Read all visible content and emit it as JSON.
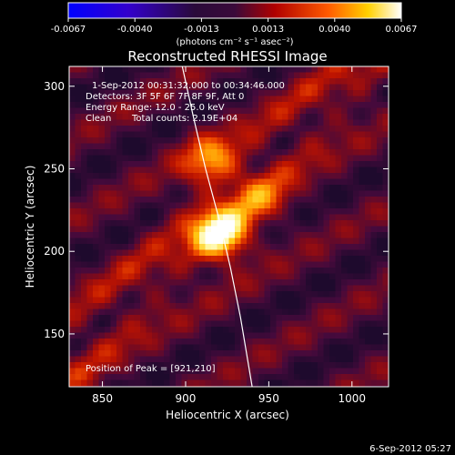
{
  "chart_data": {
    "type": "heatmap",
    "title": "Reconstructed RHESSI Image",
    "xlabel": "Heliocentric X (arcsec)",
    "ylabel": "Heliocentric Y (arcsec)",
    "xlim": [
      830,
      1022
    ],
    "ylim": [
      118,
      312
    ],
    "xticks": [
      "850",
      "900",
      "950",
      "1000"
    ],
    "yticks": [
      "150",
      "200",
      "250",
      "300"
    ],
    "colorbar": {
      "ticks": [
        "-0.0067",
        "-0.0040",
        "-0.0013",
        "0.0013",
        "0.0040",
        "0.0067"
      ],
      "unit_label": "(photons cm⁻² s⁻¹ asec⁻²)",
      "range": [
        -0.0067,
        0.0067
      ]
    },
    "annotations": {
      "time_range": "1-Sep-2012 00:31:32.000 to 00:34:46.000",
      "detectors": "Detectors: 3F 5F 6F 7F 8F 9F, Att 0",
      "energy": "Energy Range: 12.0 - 25.0 keV",
      "clean_label": "Clean",
      "total_counts": "Total counts: 2.19E+04",
      "peak": "Position of Peak = [921,210]"
    },
    "peak_position": [
      921,
      210
    ],
    "sources": [
      {
        "x": 921,
        "y": 210,
        "intensity": 1.0
      },
      {
        "x": 915,
        "y": 255,
        "intensity": 0.55
      },
      {
        "x": 945,
        "y": 232,
        "intensity": 0.35
      }
    ],
    "limb_curve": [
      [
        898,
        312
      ],
      [
        905,
        280
      ],
      [
        912,
        250
      ],
      [
        920,
        220
      ],
      [
        927,
        190
      ],
      [
        933,
        160
      ],
      [
        940,
        118
      ]
    ]
  },
  "footer_date": "6-Sep-2012 05:27"
}
